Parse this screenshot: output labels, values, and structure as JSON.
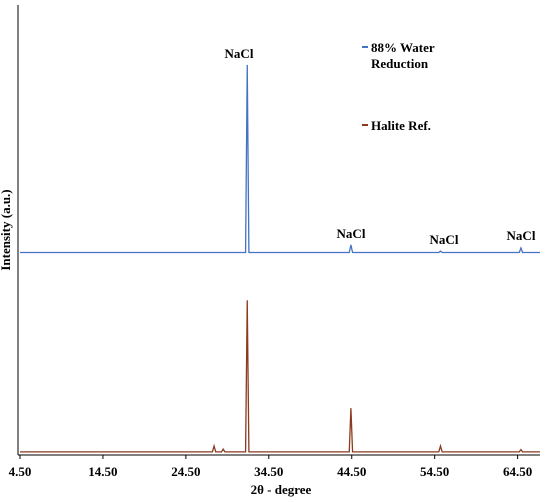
{
  "chart_data": {
    "type": "line",
    "x_label": "2θ - degree",
    "y_label": "Intensity (a.u.)",
    "x": [
      4.5,
      10,
      20,
      27.7,
      27.9,
      28.1,
      28.8,
      29.0,
      29.2,
      31.7,
      31.9,
      32.1,
      40,
      44.2,
      44.4,
      44.6,
      50,
      55.0,
      55.2,
      55.4,
      64.7,
      64.9,
      65.1,
      67.2
    ],
    "series": [
      {
        "name": "88% Water Reduction",
        "color": "#4472c4",
        "values": [
          45,
          45,
          45,
          45,
          45,
          45,
          45,
          45,
          45,
          45,
          86.7,
          45,
          45,
          45,
          46.7,
          45,
          45,
          45,
          45.3,
          45,
          45,
          46,
          45,
          45
        ]
      },
      {
        "name": "Halite Ref.",
        "color": "#8b3a1e",
        "values": [
          0.7,
          0.7,
          0.7,
          0.7,
          2,
          0.7,
          0.7,
          1.3,
          0.7,
          0.7,
          34.4,
          0.7,
          0.7,
          0.7,
          10.4,
          0.7,
          0.7,
          0.7,
          2,
          0.7,
          0.7,
          1.2,
          0.7,
          0.7
        ]
      }
    ],
    "annotations": [
      "NaCl",
      "NaCl",
      "NaCl",
      "NaCl"
    ],
    "xlim": [
      4.5,
      67.2
    ],
    "xticks": [
      {
        "value": 4.5,
        "label": "4.50"
      },
      {
        "value": 14.5,
        "label": "14.50"
      },
      {
        "value": 24.5,
        "label": "24.50"
      },
      {
        "value": 34.5,
        "label": "34.50"
      },
      {
        "value": 44.5,
        "label": "44.50"
      },
      {
        "value": 54.5,
        "label": "54.50"
      },
      {
        "value": 64.5,
        "label": "64.50"
      }
    ],
    "ylim": [
      0,
      100
    ],
    "legend": "top-right"
  }
}
